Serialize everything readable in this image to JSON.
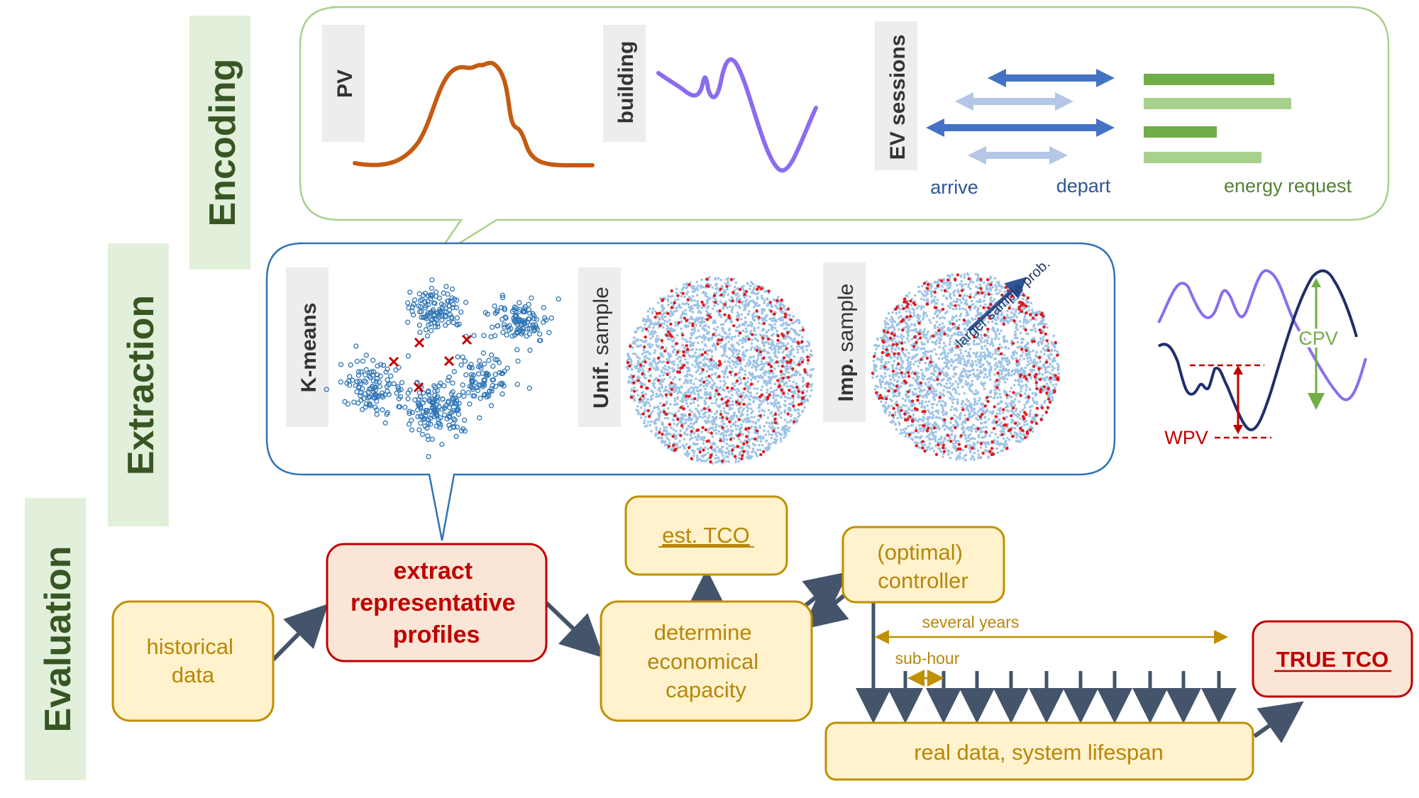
{
  "stages": {
    "encoding": "Encoding",
    "extraction": "Extraction",
    "evaluation": "Evaluation"
  },
  "encoding_panel": {
    "pv_label": "PV",
    "building_label": "building",
    "ev_label": "EV sessions",
    "arrive": "arrive",
    "depart": "depart",
    "energy_request": "energy request"
  },
  "extraction_panel": {
    "kmeans_label": "K-means",
    "unif_bold": "Unif.",
    "unif_rest": " sample",
    "imp_bold": "Imp.",
    "imp_rest": " sample",
    "larger_sample": "larger sample prob."
  },
  "metrics": {
    "cpv": "CPV",
    "wpv": "WPV"
  },
  "flow": {
    "historical_line1": "historical",
    "historical_line2": "data",
    "extract_line1": "extract",
    "extract_line2": "representative",
    "extract_line3": "profiles",
    "determine_line1": "determine",
    "determine_line2": "economical",
    "determine_line3": "capacity",
    "est_tco": "est. TCO",
    "controller_line1": "(optimal)",
    "controller_line2": "controller",
    "several_years": "several years",
    "sub_hour": "sub-hour",
    "real_data": "real data, system lifespan",
    "true_tco": "TRUE TCO"
  },
  "colors": {
    "green_band": "#e2efda",
    "green_text": "#375623",
    "yellow_fill": "#fff2cc",
    "yellow_border": "#bf9000",
    "yellow_text": "#b8860b",
    "red_fill": "#fbe5d6",
    "red_border": "#c00000",
    "pv_curve": "#c55a11",
    "building_curve": "#8b6cf0",
    "ev_dark": "#4472c4",
    "ev_light": "#b4c7e7",
    "bar_dark": "#70ad47",
    "bar_light": "#a9d18e",
    "scatter_blue": "#2e75b6",
    "dark_arrow": "#44546a"
  }
}
